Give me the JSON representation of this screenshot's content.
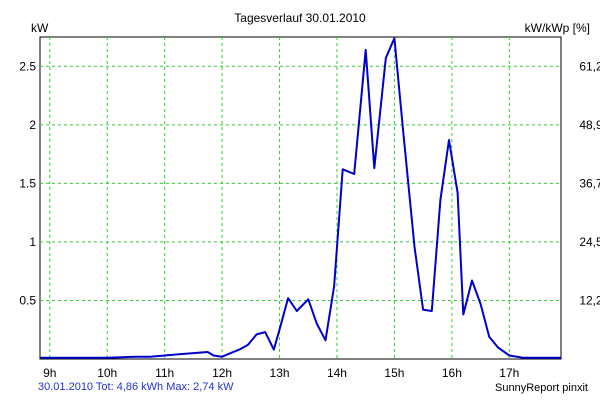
{
  "chart_data": {
    "type": "line",
    "title": "Tagesverlauf 30.01.2010",
    "ylabel": "kW",
    "ylabel_right": "kW/kWp [%]",
    "x_ticks": [
      "9h",
      "10h",
      "11h",
      "12h",
      "13h",
      "14h",
      "15h",
      "16h",
      "17h"
    ],
    "y_ticks": [
      "0.5",
      "1",
      "1.5",
      "2",
      "2.5"
    ],
    "y2_ticks": [
      "12,2",
      "24,5",
      "36,7",
      "48,9",
      "61,2"
    ],
    "xlim": [
      8.83,
      17.9
    ],
    "ylim": [
      0,
      2.75
    ],
    "grid": true,
    "line_color": "#0000cc",
    "grid_color": "#33cc33",
    "series": [
      {
        "x": [
          8.83,
          9.0,
          9.5,
          10.0,
          10.5,
          10.75,
          11.0,
          11.25,
          11.5,
          11.75,
          11.85,
          12.0,
          12.15,
          12.3,
          12.45,
          12.6,
          12.75,
          12.9,
          13.0,
          13.15,
          13.3,
          13.5,
          13.65,
          13.8,
          13.95,
          14.1,
          14.3,
          14.5,
          14.65,
          14.85,
          15.0,
          15.15,
          15.35,
          15.5,
          15.65,
          15.8,
          15.95,
          16.1,
          16.2,
          16.35,
          16.5,
          16.65,
          16.8,
          17.0,
          17.25,
          17.5,
          17.9
        ],
        "y": [
          0.01,
          0.01,
          0.01,
          0.01,
          0.02,
          0.02,
          0.03,
          0.04,
          0.05,
          0.06,
          0.03,
          0.02,
          0.05,
          0.08,
          0.12,
          0.21,
          0.23,
          0.08,
          0.25,
          0.52,
          0.41,
          0.51,
          0.3,
          0.16,
          0.62,
          1.62,
          1.58,
          2.64,
          1.63,
          2.57,
          2.74,
          1.96,
          0.96,
          0.42,
          0.41,
          1.36,
          1.87,
          1.42,
          0.38,
          0.67,
          0.47,
          0.19,
          0.1,
          0.03,
          0.01,
          0.01,
          0.01
        ]
      }
    ],
    "footer_left": "30.01.2010 Tot: 4,86 kWh Max: 2,74 kW",
    "footer_right": "SunnyReport pinxit"
  }
}
